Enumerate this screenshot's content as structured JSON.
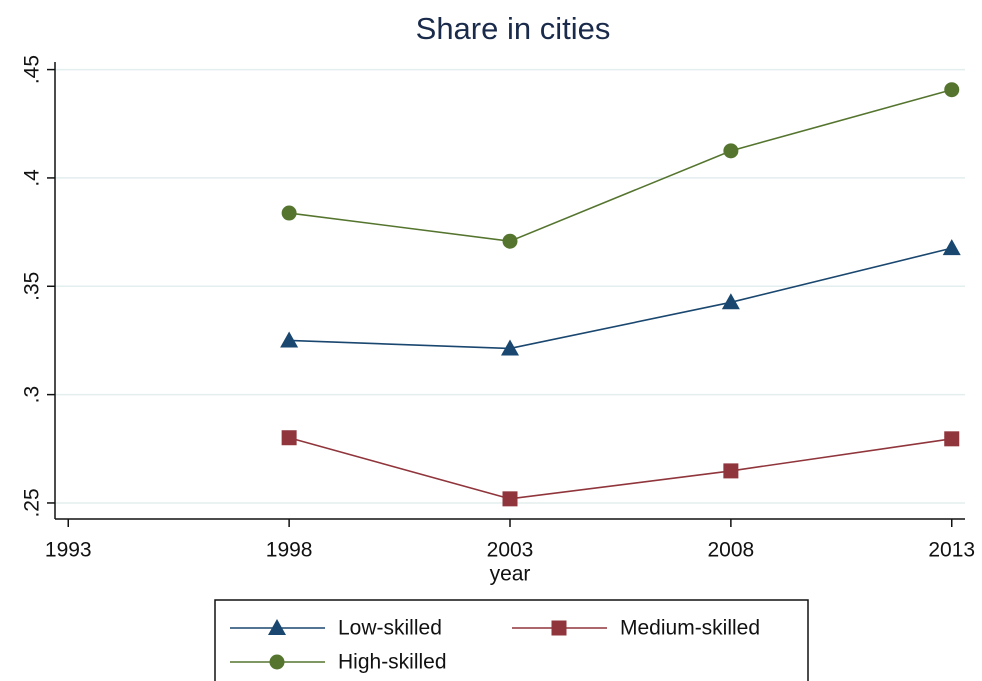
{
  "chart_data": {
    "type": "line",
    "title": "Share in cities",
    "x_label": "year",
    "x": [
      1998,
      2003,
      2008,
      2013
    ],
    "series": [
      {
        "name": "Low-skilled",
        "color": "#1a476f",
        "marker": "triangle",
        "values": [
          0.325,
          0.3213,
          0.3426,
          0.3676
        ]
      },
      {
        "name": "Medium-skilled",
        "color": "#90353b",
        "marker": "square",
        "values": [
          0.2801,
          0.2519,
          0.2648,
          0.2796
        ]
      },
      {
        "name": "High-skilled",
        "color": "#55752f",
        "marker": "circle",
        "values": [
          0.3838,
          0.3708,
          0.4125,
          0.4407
        ]
      }
    ],
    "xlim": [
      1992.7,
      2013.3
    ],
    "xticks": [
      1993,
      1998,
      2003,
      2008,
      2013
    ],
    "ylim": [
      0.2426,
      0.4535
    ],
    "yticks": [
      {
        "value": 0.25,
        "label": ".25"
      },
      {
        "value": 0.3,
        "label": ".3"
      },
      {
        "value": 0.35,
        "label": ".35"
      },
      {
        "value": 0.4,
        "label": ".4"
      },
      {
        "value": 0.45,
        "label": ".45"
      }
    ],
    "grid": true,
    "legend": "bottom",
    "legend_columns": 2
  }
}
